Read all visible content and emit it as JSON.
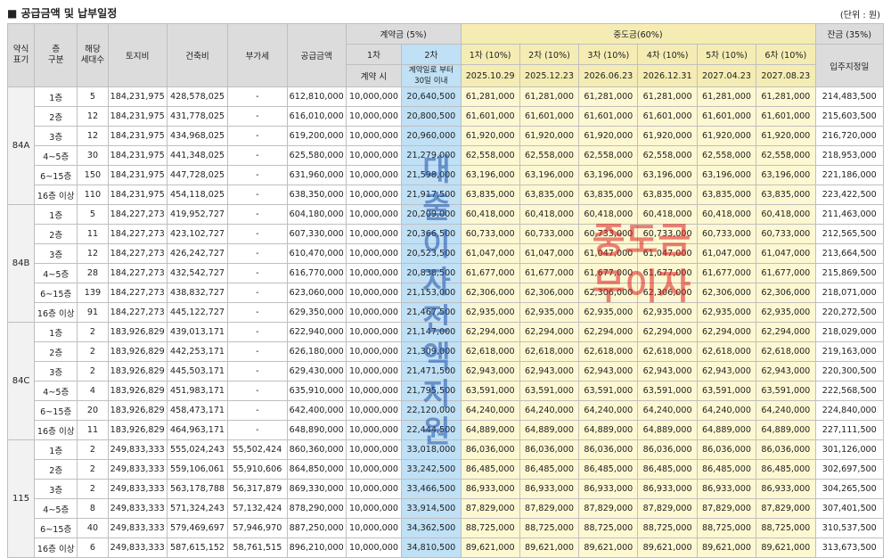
{
  "title": "■ 공급금액 및 납부일정",
  "unit": "(단위 : 원)",
  "headers": {
    "type": [
      "약식",
      "표기"
    ],
    "floor": [
      "층",
      "구분"
    ],
    "units": [
      "해당",
      "세대수"
    ],
    "land": "토지비",
    "building": "건축비",
    "vat": "부가세",
    "supply": "공급금액",
    "deposit": "계약금 (5%)",
    "d1": "1차",
    "d2": "2차",
    "d1_sub": "계약 시",
    "d2_sub": [
      "계약일로 부터",
      "30일 이내"
    ],
    "middle": "중도금(60%)",
    "m_labels": [
      "1차 (10%)",
      "2차 (10%)",
      "3차 (10%)",
      "4차 (10%)",
      "5차 (10%)",
      "6차 (10%)"
    ],
    "m_dates": [
      "2025.10.29",
      "2025.12.23",
      "2026.06.23",
      "2026.12.31",
      "2027.04.23",
      "2027.08.23"
    ],
    "balance": "잔금 (35%)",
    "balance_sub": "입주지정일"
  },
  "watermarks": {
    "blue": [
      "대",
      "출",
      "이",
      "자",
      "전",
      "액",
      "지",
      "원"
    ],
    "red": [
      "중도금",
      "무이자"
    ]
  },
  "groups": [
    {
      "type": "84A",
      "rows": [
        [
          "1층",
          "5",
          "184,231,975",
          "428,578,025",
          "-",
          "612,810,000",
          "10,000,000",
          "20,640,500",
          "61,281,000",
          "61,281,000",
          "61,281,000",
          "61,281,000",
          "61,281,000",
          "61,281,000",
          "214,483,500"
        ],
        [
          "2층",
          "12",
          "184,231,975",
          "431,778,025",
          "-",
          "616,010,000",
          "10,000,000",
          "20,800,500",
          "61,601,000",
          "61,601,000",
          "61,601,000",
          "61,601,000",
          "61,601,000",
          "61,601,000",
          "215,603,500"
        ],
        [
          "3층",
          "12",
          "184,231,975",
          "434,968,025",
          "-",
          "619,200,000",
          "10,000,000",
          "20,960,000",
          "61,920,000",
          "61,920,000",
          "61,920,000",
          "61,920,000",
          "61,920,000",
          "61,920,000",
          "216,720,000"
        ],
        [
          "4~5층",
          "30",
          "184,231,975",
          "441,348,025",
          "-",
          "625,580,000",
          "10,000,000",
          "21,279,000",
          "62,558,000",
          "62,558,000",
          "62,558,000",
          "62,558,000",
          "62,558,000",
          "62,558,000",
          "218,953,000"
        ],
        [
          "6~15층",
          "150",
          "184,231,975",
          "447,728,025",
          "-",
          "631,960,000",
          "10,000,000",
          "21,598,000",
          "63,196,000",
          "63,196,000",
          "63,196,000",
          "63,196,000",
          "63,196,000",
          "63,196,000",
          "221,186,000"
        ],
        [
          "16층 이상",
          "110",
          "184,231,975",
          "454,118,025",
          "-",
          "638,350,000",
          "10,000,000",
          "21,917,500",
          "63,835,000",
          "63,835,000",
          "63,835,000",
          "63,835,000",
          "63,835,000",
          "63,835,000",
          "223,422,500"
        ]
      ]
    },
    {
      "type": "84B",
      "rows": [
        [
          "1층",
          "5",
          "184,227,273",
          "419,952,727",
          "-",
          "604,180,000",
          "10,000,000",
          "20,209,000",
          "60,418,000",
          "60,418,000",
          "60,418,000",
          "60,418,000",
          "60,418,000",
          "60,418,000",
          "211,463,000"
        ],
        [
          "2층",
          "11",
          "184,227,273",
          "423,102,727",
          "-",
          "607,330,000",
          "10,000,000",
          "20,366,500",
          "60,733,000",
          "60,733,000",
          "60,733,000",
          "60,733,000",
          "60,733,000",
          "60,733,000",
          "212,565,500"
        ],
        [
          "3층",
          "12",
          "184,227,273",
          "426,242,727",
          "-",
          "610,470,000",
          "10,000,000",
          "20,523,500",
          "61,047,000",
          "61,047,000",
          "61,047,000",
          "61,047,000",
          "61,047,000",
          "61,047,000",
          "213,664,500"
        ],
        [
          "4~5층",
          "28",
          "184,227,273",
          "432,542,727",
          "-",
          "616,770,000",
          "10,000,000",
          "20,838,500",
          "61,677,000",
          "61,677,000",
          "61,677,000",
          "61,677,000",
          "61,677,000",
          "61,677,000",
          "215,869,500"
        ],
        [
          "6~15층",
          "139",
          "184,227,273",
          "438,832,727",
          "-",
          "623,060,000",
          "10,000,000",
          "21,153,000",
          "62,306,000",
          "62,306,000",
          "62,306,000",
          "62,306,000",
          "62,306,000",
          "62,306,000",
          "218,071,000"
        ],
        [
          "16층 이상",
          "91",
          "184,227,273",
          "445,122,727",
          "-",
          "629,350,000",
          "10,000,000",
          "21,467,500",
          "62,935,000",
          "62,935,000",
          "62,935,000",
          "62,935,000",
          "62,935,000",
          "62,935,000",
          "220,272,500"
        ]
      ]
    },
    {
      "type": "84C",
      "rows": [
        [
          "1층",
          "2",
          "183,926,829",
          "439,013,171",
          "-",
          "622,940,000",
          "10,000,000",
          "21,147,000",
          "62,294,000",
          "62,294,000",
          "62,294,000",
          "62,294,000",
          "62,294,000",
          "62,294,000",
          "218,029,000"
        ],
        [
          "2층",
          "2",
          "183,926,829",
          "442,253,171",
          "-",
          "626,180,000",
          "10,000,000",
          "21,309,000",
          "62,618,000",
          "62,618,000",
          "62,618,000",
          "62,618,000",
          "62,618,000",
          "62,618,000",
          "219,163,000"
        ],
        [
          "3층",
          "2",
          "183,926,829",
          "445,503,171",
          "-",
          "629,430,000",
          "10,000,000",
          "21,471,500",
          "62,943,000",
          "62,943,000",
          "62,943,000",
          "62,943,000",
          "62,943,000",
          "62,943,000",
          "220,300,500"
        ],
        [
          "4~5층",
          "4",
          "183,926,829",
          "451,983,171",
          "-",
          "635,910,000",
          "10,000,000",
          "21,795,500",
          "63,591,000",
          "63,591,000",
          "63,591,000",
          "63,591,000",
          "63,591,000",
          "63,591,000",
          "222,568,500"
        ],
        [
          "6~15층",
          "20",
          "183,926,829",
          "458,473,171",
          "-",
          "642,400,000",
          "10,000,000",
          "22,120,000",
          "64,240,000",
          "64,240,000",
          "64,240,000",
          "64,240,000",
          "64,240,000",
          "64,240,000",
          "224,840,000"
        ],
        [
          "16층 이상",
          "11",
          "183,926,829",
          "464,963,171",
          "-",
          "648,890,000",
          "10,000,000",
          "22,444,500",
          "64,889,000",
          "64,889,000",
          "64,889,000",
          "64,889,000",
          "64,889,000",
          "64,889,000",
          "227,111,500"
        ]
      ]
    },
    {
      "type": "115",
      "rows": [
        [
          "1층",
          "2",
          "249,833,333",
          "555,024,243",
          "55,502,424",
          "860,360,000",
          "10,000,000",
          "33,018,000",
          "86,036,000",
          "86,036,000",
          "86,036,000",
          "86,036,000",
          "86,036,000",
          "86,036,000",
          "301,126,000"
        ],
        [
          "2층",
          "2",
          "249,833,333",
          "559,106,061",
          "55,910,606",
          "864,850,000",
          "10,000,000",
          "33,242,500",
          "86,485,000",
          "86,485,000",
          "86,485,000",
          "86,485,000",
          "86,485,000",
          "86,485,000",
          "302,697,500"
        ],
        [
          "3층",
          "2",
          "249,833,333",
          "563,178,788",
          "56,317,879",
          "869,330,000",
          "10,000,000",
          "33,466,500",
          "86,933,000",
          "86,933,000",
          "86,933,000",
          "86,933,000",
          "86,933,000",
          "86,933,000",
          "304,265,500"
        ],
        [
          "4~5층",
          "8",
          "249,833,333",
          "571,324,243",
          "57,132,424",
          "878,290,000",
          "10,000,000",
          "33,914,500",
          "87,829,000",
          "87,829,000",
          "87,829,000",
          "87,829,000",
          "87,829,000",
          "87,829,000",
          "307,401,500"
        ],
        [
          "6~15층",
          "40",
          "249,833,333",
          "579,469,697",
          "57,946,970",
          "887,250,000",
          "10,000,000",
          "34,362,500",
          "88,725,000",
          "88,725,000",
          "88,725,000",
          "88,725,000",
          "88,725,000",
          "88,725,000",
          "310,537,500"
        ],
        [
          "16층 이상",
          "6",
          "249,833,333",
          "587,615,152",
          "58,761,515",
          "896,210,000",
          "10,000,000",
          "34,810,500",
          "89,621,000",
          "89,621,000",
          "89,621,000",
          "89,621,000",
          "89,621,000",
          "89,621,000",
          "313,673,500"
        ]
      ]
    }
  ]
}
